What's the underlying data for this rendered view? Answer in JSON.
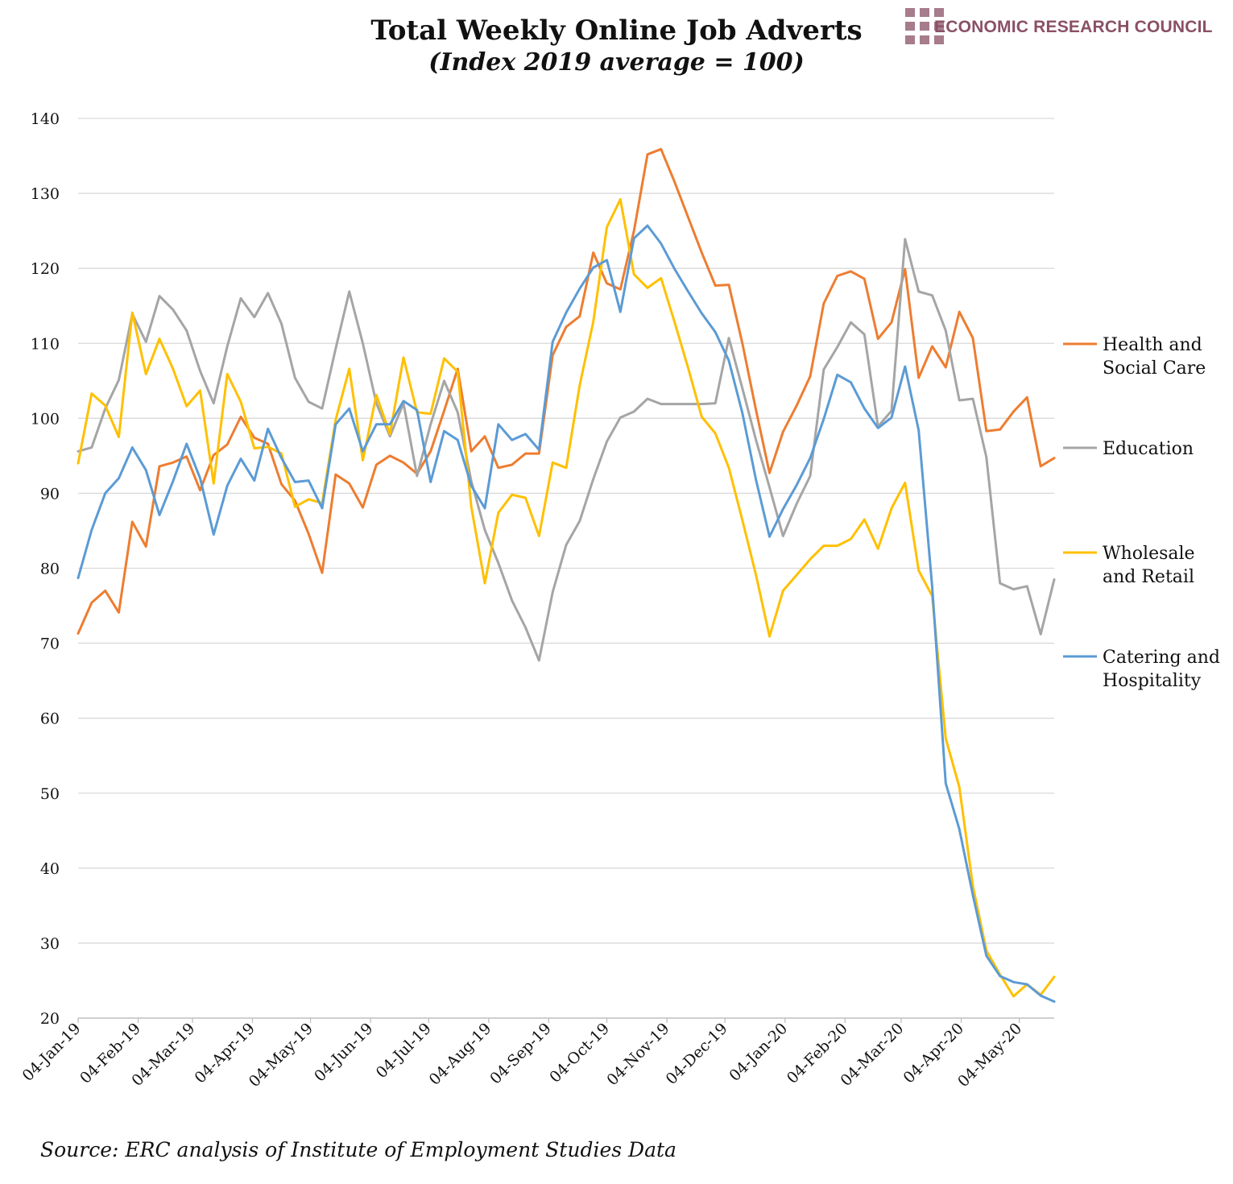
{
  "header": {
    "title": "Total Weekly Online Job Adverts",
    "subtitle": "(Index 2019 average = 100)",
    "logo_text": "ECONOMIC RESEARCH COUNCIL"
  },
  "footer": {
    "source": "Source: ERC analysis of Institute of Employment Studies Data"
  },
  "colors": {
    "health": "#ed7d31",
    "education": "#a5a5a5",
    "wholesale": "#ffc000",
    "catering": "#5b9bd5",
    "logo": "#8a5066",
    "grid": "#d9d9d9"
  },
  "chart_data": {
    "type": "line",
    "title": "Total Weekly Online Job Adverts",
    "subtitle": "(Index 2019 average = 100)",
    "ylim": [
      20,
      140
    ],
    "yticks": [
      20,
      30,
      40,
      50,
      60,
      70,
      80,
      90,
      100,
      110,
      120,
      130,
      140
    ],
    "xlabel": "",
    "ylabel": "",
    "grid": "horizontal",
    "x_start": "04-Jan-19",
    "x_interval": "weekly",
    "x_tick_labels": [
      "04-Jan-19",
      "04-Feb-19",
      "04-Mar-19",
      "04-Apr-19",
      "04-May-19",
      "04-Jun-19",
      "04-Jul-19",
      "04-Aug-19",
      "04-Sep-19",
      "04-Oct-19",
      "04-Nov-19",
      "04-Dec-19",
      "04-Jan-20",
      "04-Feb-20",
      "04-Mar-20",
      "04-Apr-20",
      "04-May-20"
    ],
    "x_tick_weeks": [
      0,
      4.43,
      8.43,
      12.86,
      17.14,
      21.57,
      25.86,
      30.29,
      34.71,
      39.0,
      43.43,
      47.71,
      52.14,
      56.57,
      60.71,
      65.14,
      69.43
    ],
    "legend_position": "right",
    "series": [
      {
        "name": "Health and Social Care",
        "legend_lines": [
          "Health and",
          "Social Care"
        ],
        "color": "#ed7d31",
        "values": [
          71.3,
          75.4,
          77.0,
          74.1,
          86.2,
          82.9,
          93.6,
          94.1,
          94.9,
          90.4,
          95.1,
          96.5,
          100.2,
          97.4,
          96.6,
          91.2,
          89.0,
          84.6,
          79.4,
          92.5,
          91.3,
          88.1,
          93.8,
          95.0,
          94.1,
          92.6,
          95.6,
          101.0,
          106.6,
          95.6,
          97.6,
          93.4,
          93.8,
          95.3,
          95.3,
          108.4,
          112.2,
          113.6,
          122.1,
          118.0,
          117.2,
          125.0,
          135.2,
          135.9,
          131.5,
          126.8,
          122.1,
          117.7,
          117.8,
          110.0,
          101.1,
          92.7,
          98.2,
          101.7,
          105.6,
          115.3,
          119.0,
          119.6,
          118.6,
          110.6,
          112.8,
          119.9,
          105.4,
          109.6,
          106.8,
          114.2,
          110.7,
          98.3,
          98.5,
          100.9,
          102.8,
          93.6,
          94.7
        ]
      },
      {
        "name": "Education",
        "legend_lines": [
          "Education"
        ],
        "color": "#a5a5a5",
        "values": [
          95.6,
          96.1,
          101.3,
          105.1,
          113.9,
          110.2,
          116.3,
          114.5,
          111.7,
          106.3,
          102.0,
          109.6,
          116.0,
          113.5,
          116.7,
          112.6,
          105.4,
          102.2,
          101.3,
          109.3,
          116.9,
          110.0,
          102.0,
          97.6,
          102.0,
          92.3,
          99.2,
          105.0,
          100.8,
          91.6,
          85.1,
          80.7,
          75.7,
          72.1,
          67.7,
          76.8,
          83.1,
          86.3,
          91.9,
          96.9,
          100.1,
          100.9,
          102.6,
          101.9,
          101.9,
          101.9,
          101.9,
          102.0,
          110.7,
          104.0,
          97.1,
          90.8,
          84.3,
          88.6,
          92.3,
          106.5,
          109.5,
          112.8,
          111.2,
          98.9,
          101.0,
          123.9,
          116.9,
          116.4,
          111.7,
          102.4,
          102.6,
          94.8,
          78.0,
          77.2,
          77.6,
          71.2,
          78.5
        ]
      },
      {
        "name": "Wholesale and Retail",
        "legend_lines": [
          "Wholesale",
          "and Retail"
        ],
        "color": "#ffc000",
        "values": [
          94.0,
          103.3,
          101.7,
          97.5,
          114.1,
          105.9,
          110.6,
          106.6,
          101.6,
          103.7,
          91.3,
          105.9,
          102.2,
          96.0,
          96.2,
          95.3,
          88.2,
          89.2,
          88.7,
          99.8,
          106.6,
          94.4,
          103.1,
          97.9,
          108.1,
          100.8,
          100.6,
          108.0,
          106.2,
          88.2,
          78.0,
          87.4,
          89.8,
          89.4,
          84.3,
          94.1,
          93.4,
          104.4,
          112.9,
          125.5,
          129.2,
          119.2,
          117.4,
          118.7,
          112.8,
          106.7,
          100.2,
          98.0,
          93.4,
          86.4,
          79.1,
          70.9,
          77.0,
          79.1,
          81.2,
          83.0,
          83.0,
          83.9,
          86.5,
          82.6,
          88.0,
          91.4,
          79.7,
          76.3,
          57.3,
          50.8,
          37.6,
          29.0,
          25.8,
          22.9,
          24.5,
          23.1,
          25.5
        ]
      },
      {
        "name": "Catering and Hospitality",
        "legend_lines": [
          "Catering and",
          "Hospitality"
        ],
        "color": "#5b9bd5",
        "values": [
          78.7,
          85.1,
          90.0,
          92.0,
          96.1,
          93.1,
          87.1,
          91.6,
          96.6,
          92.0,
          84.5,
          91.0,
          94.6,
          91.7,
          98.6,
          94.7,
          91.5,
          91.7,
          88.0,
          99.2,
          101.3,
          95.6,
          99.2,
          99.2,
          102.3,
          101.1,
          91.5,
          98.3,
          97.1,
          91.0,
          88.0,
          99.2,
          97.1,
          97.9,
          95.8,
          110.2,
          114.1,
          117.3,
          120.1,
          121.1,
          114.2,
          124.0,
          125.7,
          123.3,
          119.9,
          116.9,
          114.0,
          111.5,
          107.7,
          100.7,
          91.8,
          84.2,
          87.9,
          91.1,
          94.7,
          99.9,
          105.8,
          104.8,
          101.3,
          98.7,
          100.1,
          106.9,
          98.4,
          77.5,
          51.3,
          45.2,
          36.4,
          28.3,
          25.6,
          24.8,
          24.5,
          23.0,
          22.2
        ]
      }
    ]
  }
}
